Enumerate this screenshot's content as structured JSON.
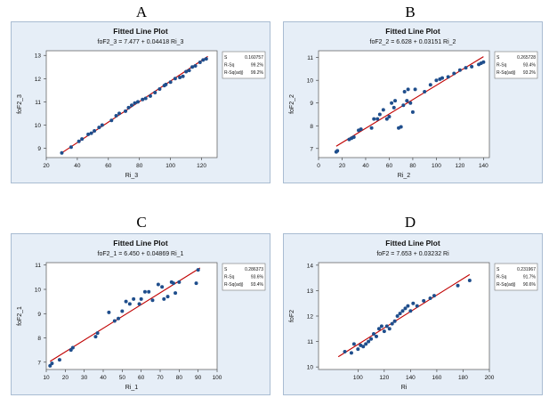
{
  "chart_data": [
    {
      "panel_label": "A",
      "type": "scatter",
      "title": "Fitted Line Plot",
      "subtitle": "foF2_3 = 7.477 + 0.04418 Ri_3",
      "xlabel": "Ri_3",
      "ylabel": "foF2_3",
      "xlim": [
        20,
        130
      ],
      "ylim": [
        8.6,
        13.2
      ],
      "xticks": [
        20,
        40,
        60,
        80,
        100,
        120
      ],
      "yticks": [
        9,
        10,
        11,
        12,
        13
      ],
      "stats": [
        {
          "label": "S",
          "value": "0.160757"
        },
        {
          "label": "R-Sq",
          "value": "99.2%"
        },
        {
          "label": "R-Sq(adj)",
          "value": "99.2%"
        }
      ],
      "fit": {
        "intercept": 7.477,
        "slope": 0.04418,
        "x_range": [
          30,
          124
        ]
      },
      "points": [
        [
          30,
          8.8
        ],
        [
          36,
          9.05
        ],
        [
          41,
          9.3
        ],
        [
          43,
          9.4
        ],
        [
          47,
          9.6
        ],
        [
          49,
          9.65
        ],
        [
          51,
          9.75
        ],
        [
          54,
          9.9
        ],
        [
          56,
          10.0
        ],
        [
          62,
          10.2
        ],
        [
          65,
          10.4
        ],
        [
          67,
          10.5
        ],
        [
          71,
          10.6
        ],
        [
          73,
          10.75
        ],
        [
          75,
          10.85
        ],
        [
          77,
          10.95
        ],
        [
          79,
          11.0
        ],
        [
          82,
          11.1
        ],
        [
          84,
          11.15
        ],
        [
          87,
          11.25
        ],
        [
          90,
          11.4
        ],
        [
          93,
          11.55
        ],
        [
          96,
          11.7
        ],
        [
          97,
          11.75
        ],
        [
          100,
          11.85
        ],
        [
          103,
          12.0
        ],
        [
          106,
          12.05
        ],
        [
          108,
          12.1
        ],
        [
          110,
          12.3
        ],
        [
          112,
          12.35
        ],
        [
          114,
          12.5
        ],
        [
          116,
          12.55
        ],
        [
          119,
          12.7
        ],
        [
          121,
          12.8
        ],
        [
          123,
          12.85
        ]
      ]
    },
    {
      "panel_label": "B",
      "type": "scatter",
      "title": "Fitted Line Plot",
      "subtitle": "foF2_2 = 6.628 + 0.03151 Ri_2",
      "xlabel": "Ri_2",
      "ylabel": "foF2_2",
      "xlim": [
        0,
        145
      ],
      "ylim": [
        6.6,
        11.3
      ],
      "xticks": [
        0,
        20,
        40,
        60,
        80,
        100,
        120,
        140
      ],
      "yticks": [
        7,
        8,
        9,
        10,
        11
      ],
      "stats": [
        {
          "label": "S",
          "value": "0.265728"
        },
        {
          "label": "R-Sq",
          "value": "93.4%"
        },
        {
          "label": "R-Sq(adj)",
          "value": "93.2%"
        }
      ],
      "fit": {
        "intercept": 6.628,
        "slope": 0.03151,
        "x_range": [
          15,
          140
        ]
      },
      "points": [
        [
          15,
          6.85
        ],
        [
          16,
          6.9
        ],
        [
          26,
          7.4
        ],
        [
          28,
          7.45
        ],
        [
          30,
          7.5
        ],
        [
          34,
          7.8
        ],
        [
          36,
          7.85
        ],
        [
          45,
          7.9
        ],
        [
          47,
          8.3
        ],
        [
          50,
          8.3
        ],
        [
          52,
          8.5
        ],
        [
          55,
          8.7
        ],
        [
          58,
          8.3
        ],
        [
          60,
          8.4
        ],
        [
          62,
          9.0
        ],
        [
          64,
          8.8
        ],
        [
          65,
          9.1
        ],
        [
          68,
          7.9
        ],
        [
          70,
          7.95
        ],
        [
          72,
          8.9
        ],
        [
          73,
          9.5
        ],
        [
          75,
          9.1
        ],
        [
          76,
          9.6
        ],
        [
          78,
          9.0
        ],
        [
          80,
          8.6
        ],
        [
          82,
          9.6
        ],
        [
          90,
          9.5
        ],
        [
          95,
          9.8
        ],
        [
          100,
          10.0
        ],
        [
          103,
          10.05
        ],
        [
          105,
          10.1
        ],
        [
          110,
          10.15
        ],
        [
          115,
          10.3
        ],
        [
          120,
          10.45
        ],
        [
          125,
          10.55
        ],
        [
          130,
          10.6
        ],
        [
          136,
          10.7
        ],
        [
          138,
          10.75
        ],
        [
          140,
          10.8
        ]
      ]
    },
    {
      "panel_label": "C",
      "type": "scatter",
      "title": "Fitted Line Plot",
      "subtitle": "foF2_1 = 6.450 + 0.04869 Ri_1",
      "xlabel": "Ri_1",
      "ylabel": "foF2_1",
      "xlim": [
        10,
        100
      ],
      "ylim": [
        6.7,
        11.1
      ],
      "xticks": [
        10,
        20,
        30,
        40,
        50,
        60,
        70,
        80,
        90,
        100
      ],
      "yticks": [
        7,
        8,
        9,
        10,
        11
      ],
      "stats": [
        {
          "label": "S",
          "value": "0.286373"
        },
        {
          "label": "R-Sq",
          "value": "93.6%"
        },
        {
          "label": "R-Sq(adj)",
          "value": "93.4%"
        }
      ],
      "fit": {
        "intercept": 6.45,
        "slope": 0.04869,
        "x_range": [
          12,
          91
        ]
      },
      "points": [
        [
          12,
          6.85
        ],
        [
          13,
          6.95
        ],
        [
          17,
          7.1
        ],
        [
          23,
          7.5
        ],
        [
          24,
          7.6
        ],
        [
          36,
          8.05
        ],
        [
          37,
          8.2
        ],
        [
          43,
          9.05
        ],
        [
          46,
          8.7
        ],
        [
          48,
          8.8
        ],
        [
          50,
          9.1
        ],
        [
          52,
          9.5
        ],
        [
          54,
          9.4
        ],
        [
          56,
          9.6
        ],
        [
          59,
          9.4
        ],
        [
          60,
          9.6
        ],
        [
          62,
          9.9
        ],
        [
          64,
          9.9
        ],
        [
          66,
          9.55
        ],
        [
          69,
          10.2
        ],
        [
          71,
          10.1
        ],
        [
          72,
          9.6
        ],
        [
          74,
          9.7
        ],
        [
          76,
          10.3
        ],
        [
          77,
          10.25
        ],
        [
          78,
          9.85
        ],
        [
          80,
          10.3
        ],
        [
          89,
          10.25
        ],
        [
          90,
          10.8
        ]
      ]
    },
    {
      "panel_label": "D",
      "type": "scatter",
      "title": "Fitted Line Plot",
      "subtitle": "foF2 = 7.653 + 0.03232 Ri",
      "xlabel": "Ri",
      "ylabel": "foF2",
      "xlim": [
        70,
        200
      ],
      "ylim": [
        9.9,
        14.1
      ],
      "xticks": [
        100,
        120,
        140,
        160,
        180,
        200
      ],
      "yticks": [
        10,
        11,
        12,
        13,
        14
      ],
      "stats": [
        {
          "label": "S",
          "value": "0.231967"
        },
        {
          "label": "R-Sq",
          "value": "91.7%"
        },
        {
          "label": "R-Sq(adj)",
          "value": "90.6%"
        }
      ],
      "fit": {
        "intercept": 7.653,
        "slope": 0.03232,
        "x_range": [
          85,
          185
        ]
      },
      "points": [
        [
          90,
          10.6
        ],
        [
          95,
          10.55
        ],
        [
          97,
          10.9
        ],
        [
          100,
          10.7
        ],
        [
          102,
          10.85
        ],
        [
          104,
          10.8
        ],
        [
          106,
          10.9
        ],
        [
          108,
          11.0
        ],
        [
          110,
          11.1
        ],
        [
          112,
          11.3
        ],
        [
          114,
          11.2
        ],
        [
          116,
          11.5
        ],
        [
          118,
          11.6
        ],
        [
          120,
          11.4
        ],
        [
          122,
          11.6
        ],
        [
          124,
          11.5
        ],
        [
          126,
          11.7
        ],
        [
          128,
          11.8
        ],
        [
          130,
          12.0
        ],
        [
          132,
          12.1
        ],
        [
          134,
          12.2
        ],
        [
          136,
          12.3
        ],
        [
          138,
          12.4
        ],
        [
          140,
          12.2
        ],
        [
          142,
          12.5
        ],
        [
          145,
          12.4
        ],
        [
          150,
          12.6
        ],
        [
          155,
          12.7
        ],
        [
          158,
          12.8
        ],
        [
          176,
          13.2
        ],
        [
          185,
          13.4
        ]
      ]
    }
  ],
  "colors": {
    "frame_bg": "#e6eef7",
    "frame_border": "#a9bcd2",
    "plot_bg": "#ffffff",
    "point": "#1f4e8c",
    "fit_line": "#c00000",
    "text": "#111111"
  }
}
